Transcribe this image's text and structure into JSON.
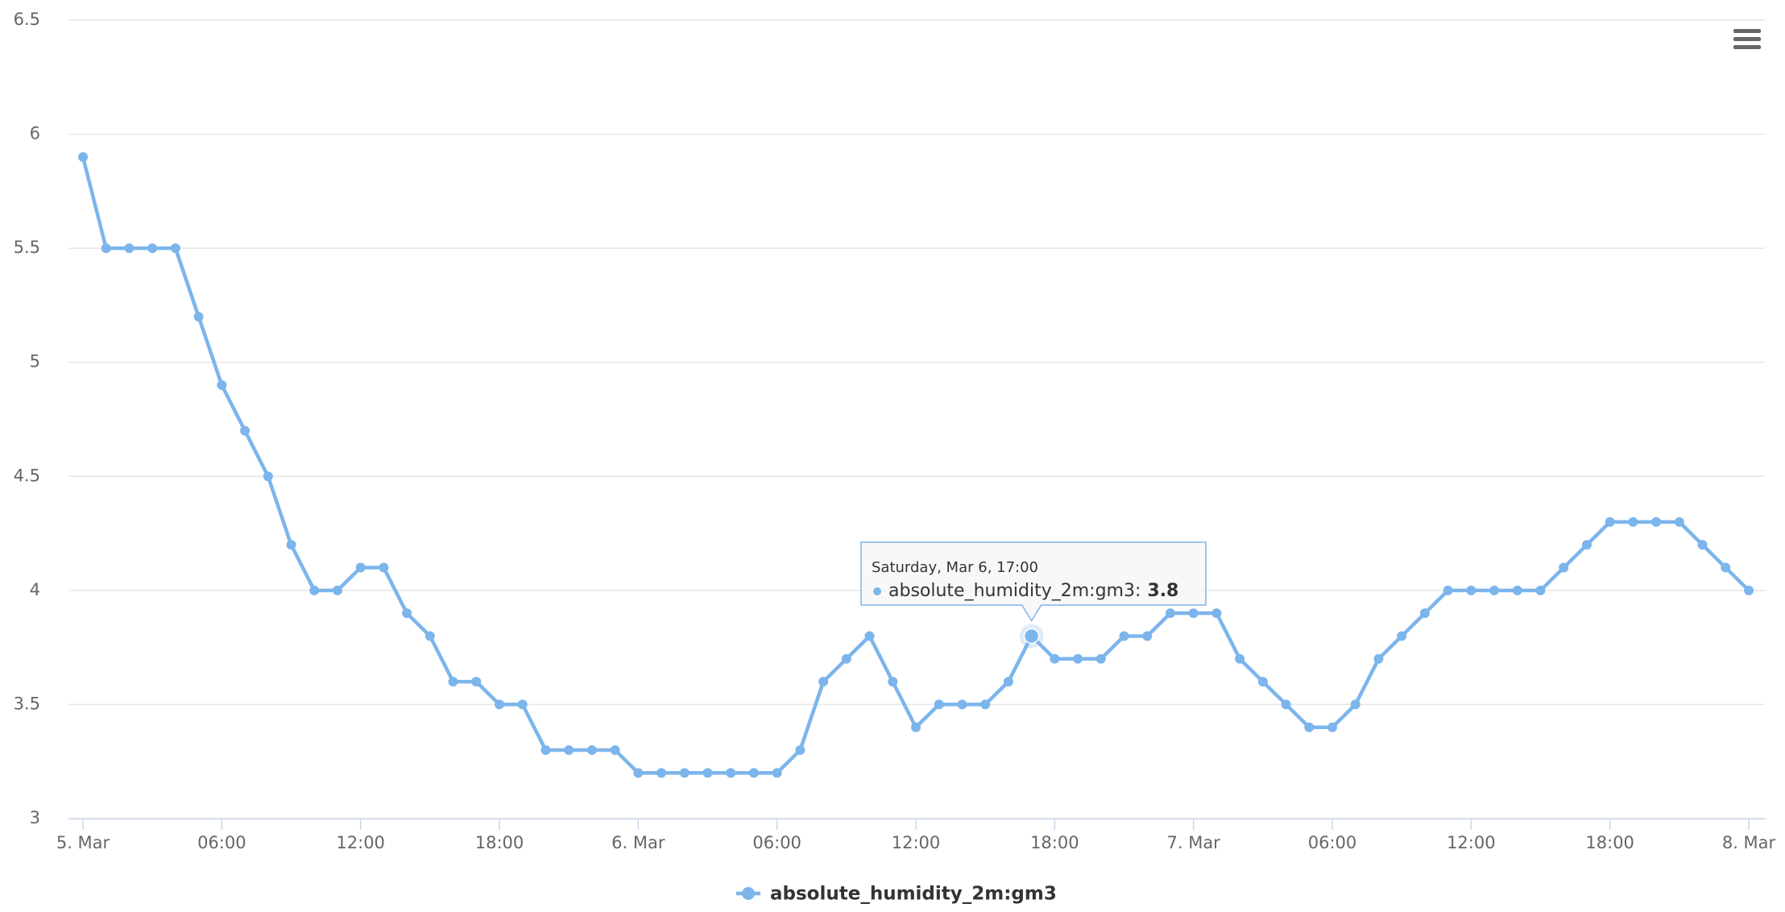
{
  "chart_data": {
    "type": "line",
    "categories": [
      "5. Mar",
      null,
      null,
      null,
      null,
      null,
      "06:00",
      null,
      null,
      null,
      null,
      null,
      "12:00",
      null,
      null,
      null,
      null,
      null,
      "18:00",
      null,
      null,
      null,
      null,
      null,
      "6. Mar",
      null,
      null,
      null,
      null,
      null,
      "06:00",
      null,
      null,
      null,
      null,
      null,
      "12:00",
      null,
      null,
      null,
      null,
      null,
      "18:00",
      null,
      null,
      null,
      null,
      null,
      "7. Mar",
      null,
      null,
      null,
      null,
      null,
      "06:00",
      null,
      null,
      null,
      null,
      null,
      "12:00",
      null,
      null,
      null,
      null,
      null,
      "18:00",
      null,
      null,
      null,
      null,
      null,
      "8. Mar"
    ],
    "series": [
      {
        "name": "absolute_humidity_2m:gm3",
        "color": "#7cb5ec",
        "values": [
          5.9,
          5.5,
          5.5,
          5.5,
          5.5,
          5.2,
          4.9,
          4.7,
          4.5,
          4.2,
          4.0,
          4.0,
          4.1,
          4.1,
          3.9,
          3.8,
          3.6,
          3.6,
          3.5,
          3.5,
          3.3,
          3.3,
          3.3,
          3.3,
          3.2,
          3.2,
          3.2,
          3.2,
          3.2,
          3.2,
          3.2,
          3.3,
          3.6,
          3.7,
          3.8,
          3.6,
          3.4,
          3.5,
          3.5,
          3.5,
          3.6,
          3.8,
          3.7,
          3.7,
          3.7,
          3.8,
          3.8,
          3.9,
          3.9,
          3.9,
          3.7,
          3.6,
          3.5,
          3.4,
          3.4,
          3.5,
          3.7,
          3.8,
          3.9,
          4.0,
          4.0,
          4.0,
          4.0,
          4.0,
          4.1,
          4.2,
          4.3,
          4.3,
          4.3,
          4.3,
          4.2,
          4.1,
          4.0
        ]
      }
    ],
    "ylim": [
      3,
      6.5
    ],
    "yticks": [
      3,
      3.5,
      4,
      4.5,
      5,
      5.5,
      6,
      6.5
    ],
    "grid": true,
    "legend": "bottom",
    "tooltip": {
      "header": "Saturday, Mar 6, 17:00",
      "label": "absolute_humidity_2m:gm3:"
    }
  }
}
